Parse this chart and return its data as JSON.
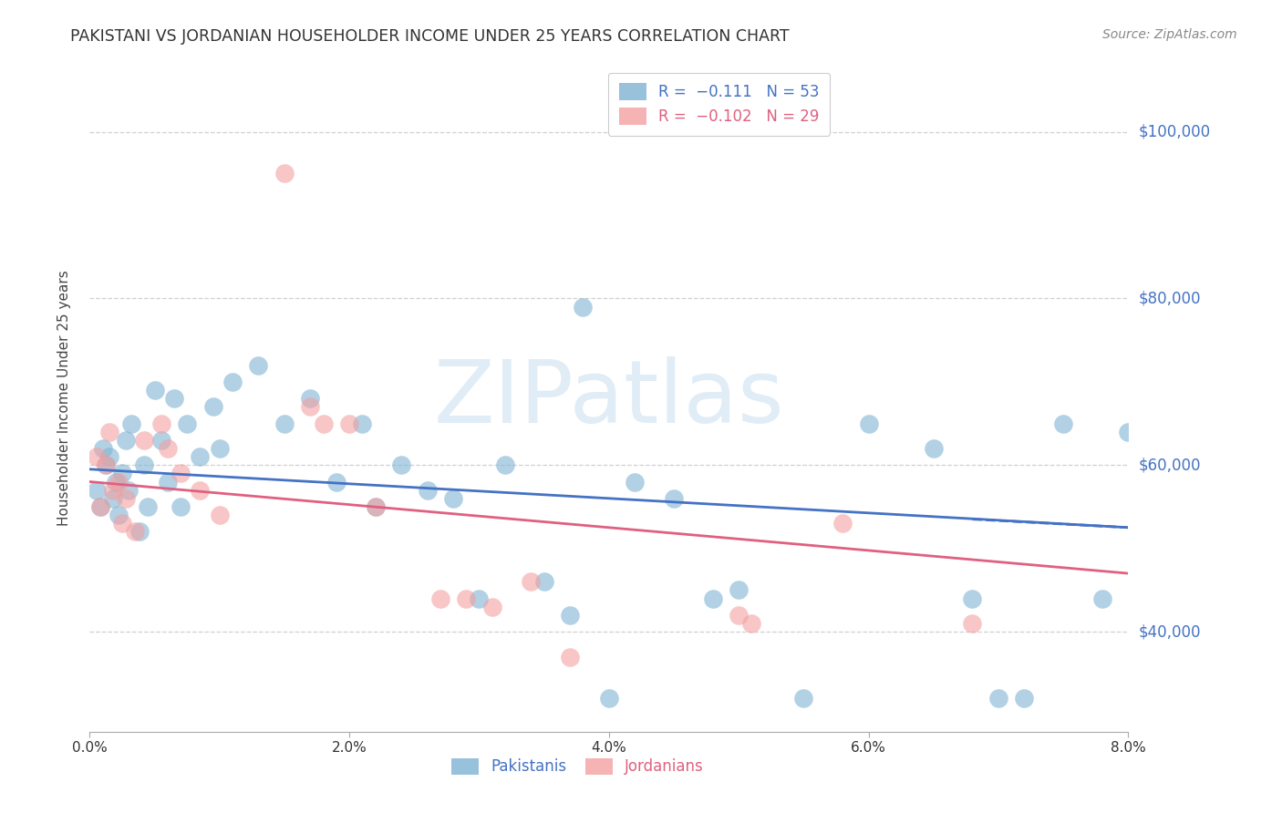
{
  "title": "PAKISTANI VS JORDANIAN HOUSEHOLDER INCOME UNDER 25 YEARS CORRELATION CHART",
  "source": "Source: ZipAtlas.com",
  "ylabel": "Householder Income Under 25 years",
  "xlabel_vals": [
    0.0,
    2.0,
    4.0,
    6.0,
    8.0
  ],
  "ytick_labels": [
    "$40,000",
    "$60,000",
    "$80,000",
    "$100,000"
  ],
  "ytick_vals": [
    40000,
    60000,
    80000,
    100000
  ],
  "xlim": [
    0.0,
    8.0
  ],
  "ylim": [
    28000,
    108000
  ],
  "pakistanis_x": [
    0.05,
    0.08,
    0.1,
    0.12,
    0.15,
    0.18,
    0.2,
    0.22,
    0.25,
    0.28,
    0.3,
    0.32,
    0.38,
    0.42,
    0.45,
    0.5,
    0.55,
    0.6,
    0.65,
    0.7,
    0.75,
    0.85,
    0.95,
    1.0,
    1.1,
    1.3,
    1.5,
    1.7,
    1.9,
    2.1,
    2.2,
    2.4,
    2.6,
    2.8,
    3.0,
    3.2,
    3.5,
    3.7,
    4.0,
    4.2,
    4.5,
    4.8,
    5.0,
    5.5,
    6.0,
    6.5,
    6.8,
    7.0,
    7.2,
    7.5,
    7.8,
    8.0,
    3.8
  ],
  "pakistanis_y": [
    57000,
    55000,
    62000,
    60000,
    61000,
    56000,
    58000,
    54000,
    59000,
    63000,
    57000,
    65000,
    52000,
    60000,
    55000,
    69000,
    63000,
    58000,
    68000,
    55000,
    65000,
    61000,
    67000,
    62000,
    70000,
    72000,
    65000,
    68000,
    58000,
    65000,
    55000,
    60000,
    57000,
    56000,
    44000,
    60000,
    46000,
    42000,
    32000,
    58000,
    56000,
    44000,
    45000,
    32000,
    65000,
    62000,
    44000,
    32000,
    32000,
    65000,
    44000,
    64000,
    79000
  ],
  "jordanians_x": [
    0.05,
    0.08,
    0.12,
    0.15,
    0.18,
    0.22,
    0.25,
    0.28,
    0.35,
    0.42,
    0.55,
    0.7,
    0.85,
    1.0,
    1.5,
    1.7,
    1.8,
    2.2,
    2.7,
    2.9,
    3.1,
    3.4,
    3.7,
    5.0,
    5.1,
    5.8,
    6.8,
    2.0,
    0.6
  ],
  "jordanians_y": [
    61000,
    55000,
    60000,
    64000,
    57000,
    58000,
    53000,
    56000,
    52000,
    63000,
    65000,
    59000,
    57000,
    54000,
    95000,
    67000,
    65000,
    55000,
    44000,
    44000,
    43000,
    46000,
    37000,
    42000,
    41000,
    53000,
    41000,
    65000,
    62000
  ],
  "pakistani_color": "#7fb3d3",
  "jordanian_color": "#f4a0a0",
  "blue_line_x": [
    0.0,
    8.0
  ],
  "blue_line_y": [
    59500,
    52500
  ],
  "pink_line_x": [
    0.0,
    8.0
  ],
  "pink_line_y": [
    58000,
    47000
  ],
  "dashed_line_x": [
    6.8,
    8.0
  ],
  "dashed_line_y": [
    53500,
    52500
  ],
  "watermark": "ZIPatlas",
  "background_color": "#ffffff",
  "grid_color": "#d0d0d0",
  "title_color": "#333333",
  "ytick_color": "#4472c4",
  "source_color": "#888888"
}
